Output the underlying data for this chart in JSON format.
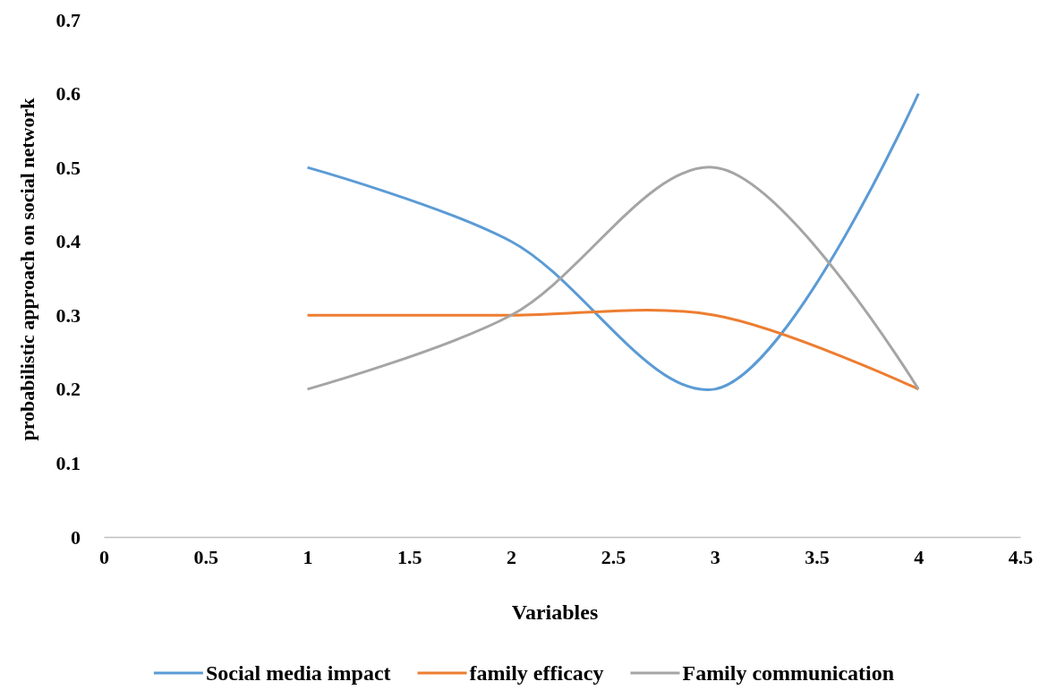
{
  "chart_data": {
    "type": "line",
    "xlabel": "Variables",
    "ylabel": "probabilistic approach on  social network",
    "x": [
      1,
      2,
      3,
      4
    ],
    "series": [
      {
        "name": "Social media impact",
        "color": "#5b9bd5",
        "values": [
          0.5,
          0.4,
          0.2,
          0.6
        ]
      },
      {
        "name": "family efficacy",
        "color": "#ed7d31",
        "values": [
          0.3,
          0.3,
          0.3,
          0.2
        ]
      },
      {
        "name": "Family communication",
        "color": "#a5a5a5",
        "values": [
          0.2,
          0.3,
          0.5,
          0.2
        ]
      }
    ],
    "xlim": [
      0,
      4.5
    ],
    "xticks": [
      0,
      0.5,
      1,
      1.5,
      2,
      2.5,
      3,
      3.5,
      4,
      4.5
    ],
    "ylim": [
      0,
      0.7
    ],
    "yticks": [
      0,
      0.1,
      0.2,
      0.3,
      0.4,
      0.5,
      0.6,
      0.7
    ],
    "grid": false,
    "legend": "bottom",
    "marker": "none",
    "line_style": "solid"
  }
}
